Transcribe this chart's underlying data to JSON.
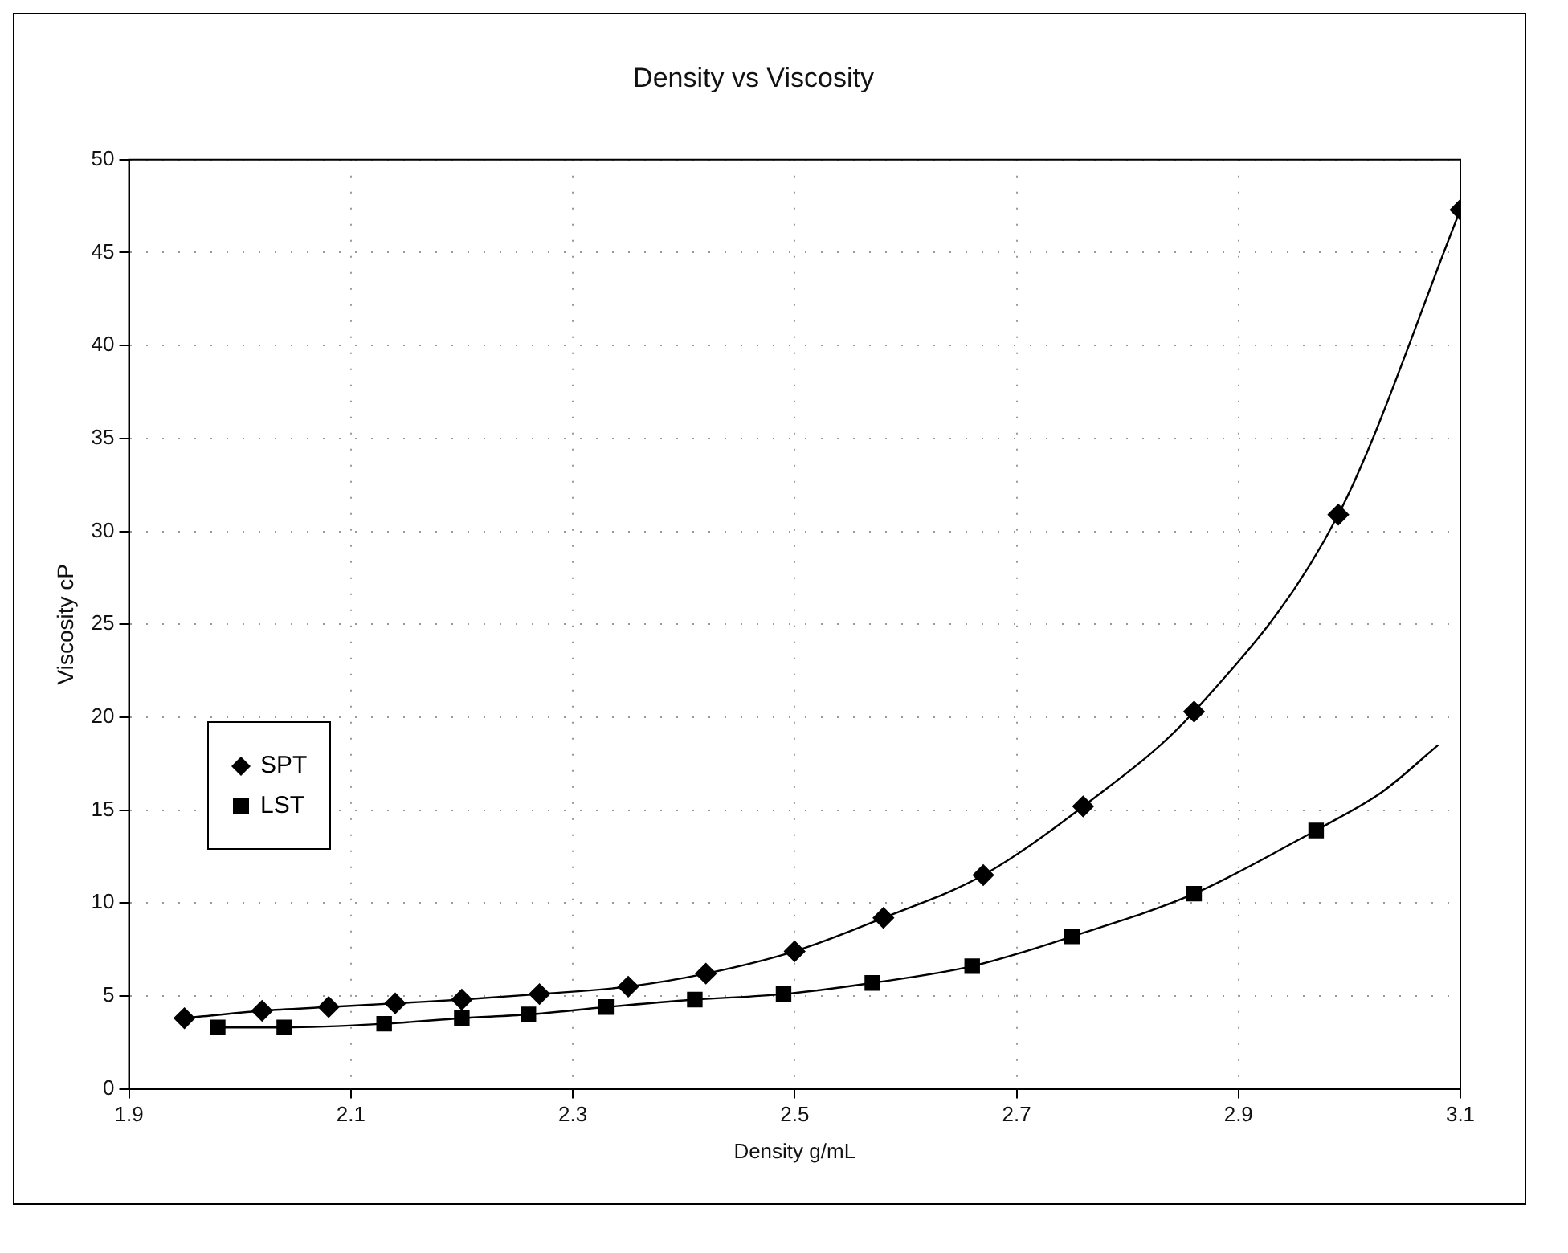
{
  "chart_data": {
    "type": "line",
    "title": "Density vs Viscosity",
    "xlabel": "Density g/mL",
    "ylabel": "Viscosity cP",
    "xlim": [
      1.9,
      3.1
    ],
    "xticks": [
      1.9,
      2.1,
      2.3,
      2.5,
      2.7,
      2.9,
      3.1
    ],
    "ylim": [
      0,
      50
    ],
    "yticks": [
      0,
      5,
      10,
      15,
      20,
      25,
      30,
      35,
      40,
      45,
      50
    ],
    "grid": true,
    "legend": "left",
    "series": [
      {
        "name": "SPT",
        "color": "#000000",
        "marker": "diamond",
        "x": [
          1.95,
          2.02,
          2.08,
          2.14,
          2.2,
          2.27,
          2.35,
          2.42,
          2.5,
          2.58,
          2.67,
          2.76,
          2.86,
          2.99,
          3.1
        ],
        "values": [
          3.8,
          4.2,
          4.4,
          4.6,
          4.8,
          5.1,
          5.5,
          6.2,
          7.4,
          9.2,
          11.5,
          15.2,
          20.3,
          30.9,
          47.3
        ]
      },
      {
        "name": "LST",
        "color": "#000000",
        "marker": "square",
        "x": [
          1.98,
          2.04,
          2.13,
          2.2,
          2.26,
          2.33,
          2.41,
          2.49,
          2.57,
          2.66,
          2.75,
          2.86,
          2.97
        ],
        "values": [
          3.3,
          3.3,
          3.5,
          3.8,
          4.0,
          4.4,
          4.8,
          5.1,
          5.7,
          6.6,
          8.2,
          10.5,
          13.9
        ]
      },
      {
        "type": "line",
        "color": "#000000",
        "marker": "none",
        "x": [
          2.97,
          3.03,
          3.08
        ],
        "values": [
          13.9,
          16.0,
          18.5
        ]
      }
    ]
  }
}
